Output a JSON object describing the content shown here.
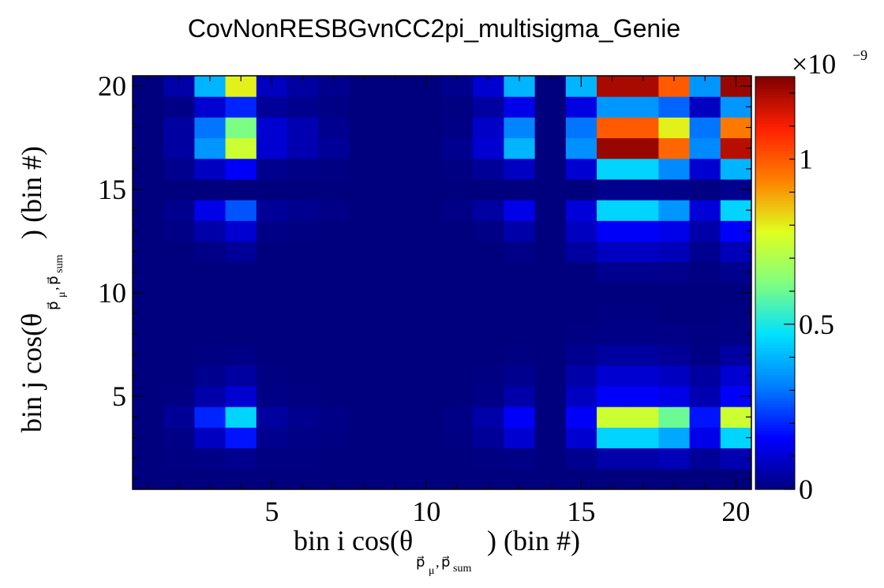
{
  "chart_data": {
    "type": "heatmap",
    "title": "CovNonRESBGvnCC2pi_multisigma_Genie",
    "xlabel": {
      "prefix": "bin i cos(θ",
      "subscript": "p⃗",
      "subscript_mu": "μ",
      "subscript_sep": ",",
      "subscript_sum_p": "p⃗",
      "subscript_sum": "sum",
      "suffix": ") (bin #)"
    },
    "ylabel": {
      "prefix": "bin j cos(θ",
      "subscript": "p⃗",
      "subscript_mu": "μ",
      "subscript_sep": ",",
      "subscript_sum_p": "p⃗",
      "subscript_sum": "sum",
      "suffix": ") (bin #)"
    },
    "x_ticks": [
      "5",
      "10",
      "15",
      "20"
    ],
    "y_ticks": [
      "5",
      "10",
      "15",
      "20"
    ],
    "x_range": [
      0.5,
      20.5
    ],
    "y_range": [
      0.5,
      20.5
    ],
    "nbins": 20,
    "colorbar": {
      "exponent_label": "×10",
      "exponent": "−9",
      "min": 0,
      "max": 1.25,
      "ticks": [
        "0",
        "0.5",
        "1"
      ]
    },
    "colormap": [
      "#00007f",
      "#0000ff",
      "#007fff",
      "#00e0ff",
      "#7fff7f",
      "#dfff1f",
      "#ff8000",
      "#ff2000",
      "#7f0000"
    ],
    "base_values": [
      0,
      0.04,
      0.27,
      0.45,
      0.06,
      0.04,
      0.02,
      0,
      0,
      0,
      0.02,
      0.09,
      0.32,
      0.01,
      0.3,
      1.2,
      1.22,
      0.9,
      0.34,
      1.2
    ],
    "bin_factors": [
      0,
      0.04,
      0.27,
      0.45,
      0.06,
      0.04,
      0.02,
      0,
      0,
      0,
      0.02,
      0.09,
      0.32,
      0.01,
      0.3,
      1.0,
      1.0,
      0.9,
      0.34,
      1.0
    ],
    "values": [
      [
        0,
        0,
        0,
        0,
        0,
        0,
        0,
        0,
        0,
        0,
        0,
        0,
        0,
        0,
        0,
        0,
        0,
        0,
        0,
        0
      ],
      [
        0,
        0.005,
        0.01,
        0.02,
        0.005,
        0.005,
        0,
        0,
        0,
        0,
        0,
        0.005,
        0.01,
        0,
        0.02,
        0.05,
        0.05,
        0.07,
        0.03,
        0.06
      ],
      [
        0,
        0.01,
        0.08,
        0.18,
        0.02,
        0.01,
        0.005,
        0,
        0,
        0,
        0.005,
        0.03,
        0.1,
        0,
        0.1,
        0.45,
        0.45,
        0.38,
        0.13,
        0.45
      ],
      [
        0,
        0.03,
        0.2,
        0.45,
        0.04,
        0.02,
        0.01,
        0,
        0,
        0,
        0.01,
        0.05,
        0.15,
        0,
        0.15,
        0.75,
        0.75,
        0.6,
        0.18,
        0.75
      ],
      [
        0,
        0.005,
        0.05,
        0.1,
        0.01,
        0.005,
        0,
        0,
        0,
        0,
        0,
        0.01,
        0.05,
        0,
        0.08,
        0.15,
        0.15,
        0.13,
        0.06,
        0.15
      ],
      [
        0,
        0,
        0.02,
        0.04,
        0.005,
        0,
        0,
        0,
        0,
        0,
        0,
        0.005,
        0.02,
        0,
        0.05,
        0.1,
        0.1,
        0.08,
        0.04,
        0.1
      ],
      [
        0,
        0,
        0.005,
        0.01,
        0,
        0,
        0,
        0,
        0,
        0,
        0,
        0,
        0.005,
        0,
        0.02,
        0.04,
        0.04,
        0.03,
        0.01,
        0.04
      ],
      [
        0,
        0,
        0,
        0,
        0,
        0,
        0,
        0,
        0,
        0,
        0,
        0,
        0,
        0,
        0.005,
        0.01,
        0.01,
        0.01,
        0.005,
        0.01
      ],
      [
        0,
        0,
        0,
        0,
        0,
        0,
        0,
        0,
        0,
        0,
        0,
        0,
        0,
        0,
        0,
        0.005,
        0.005,
        0,
        0,
        0.005
      ],
      [
        0,
        0,
        0,
        0,
        0,
        0,
        0,
        0,
        0,
        0,
        0,
        0,
        0,
        0,
        0,
        0,
        0,
        0,
        0,
        0
      ],
      [
        0,
        0,
        0,
        0,
        0,
        0,
        0,
        0,
        0,
        0,
        0,
        0,
        0,
        0,
        0,
        0.02,
        0.02,
        0.015,
        0.005,
        0.02
      ],
      [
        0,
        0,
        0.01,
        0.03,
        0,
        0,
        0,
        0,
        0,
        0,
        0,
        0,
        0.01,
        0,
        0.04,
        0.08,
        0.08,
        0.07,
        0.02,
        0.07
      ],
      [
        0,
        0.01,
        0.05,
        0.1,
        0.01,
        0.005,
        0,
        0,
        0,
        0,
        0,
        0.01,
        0.05,
        0,
        0.08,
        0.15,
        0.15,
        0.13,
        0.05,
        0.15
      ],
      [
        0,
        0.02,
        0.13,
        0.26,
        0.03,
        0.02,
        0.01,
        0,
        0,
        0,
        0.01,
        0.04,
        0.13,
        0,
        0.11,
        0.45,
        0.45,
        0.35,
        0.11,
        0.45
      ],
      [
        0,
        0,
        0,
        0,
        0,
        0,
        0,
        0,
        0,
        0,
        0,
        0,
        0,
        0,
        0,
        0.02,
        0.02,
        0.015,
        0.005,
        0.02
      ],
      [
        0,
        0.02,
        0.08,
        0.15,
        0.02,
        0.01,
        0.005,
        0,
        0,
        0,
        0.005,
        0.03,
        0.08,
        0,
        0.1,
        0.45,
        0.45,
        0.33,
        0.1,
        0.4
      ],
      [
        0,
        0.04,
        0.35,
        0.75,
        0.1,
        0.06,
        0.03,
        0,
        0,
        0,
        0.02,
        0.1,
        0.4,
        0,
        0.34,
        1.22,
        1.22,
        0.98,
        0.33,
        1.18
      ],
      [
        0,
        0.04,
        0.3,
        0.62,
        0.1,
        0.06,
        0.02,
        0,
        0,
        0,
        0.01,
        0.09,
        0.32,
        0,
        0.3,
        1.0,
        1.0,
        0.8,
        0.3,
        0.95
      ],
      [
        0,
        0.01,
        0.1,
        0.2,
        0.03,
        0.02,
        0.01,
        0,
        0,
        0,
        0.005,
        0.04,
        0.13,
        0,
        0.12,
        0.35,
        0.35,
        0.28,
        0.08,
        0.35
      ],
      [
        0,
        0.05,
        0.4,
        0.8,
        0.08,
        0.04,
        0.02,
        0,
        0,
        0,
        0.02,
        0.1,
        0.4,
        0,
        0.4,
        1.2,
        1.2,
        1.0,
        0.35,
        1.22
      ]
    ]
  }
}
